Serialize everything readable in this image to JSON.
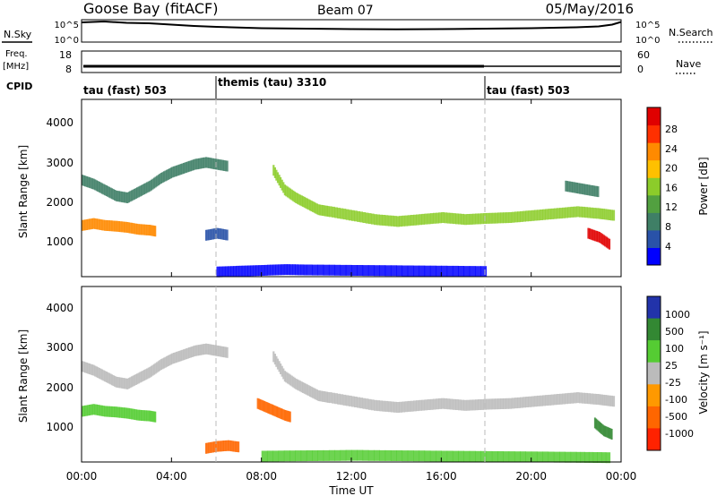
{
  "header": {
    "station": "Goose Bay (fitACF)",
    "beam": "Beam 07",
    "date": "05/May/2016"
  },
  "strips": {
    "nsky_label": "N.Sky",
    "nsky_ticks": [
      "10^5",
      "10^0"
    ],
    "nsearch_label": "N.Search",
    "nsearch_ticks": [
      "10^5",
      "10^0"
    ],
    "freq_label": "Freq.",
    "freq_unit": "[MHz]",
    "freq_ticks": [
      "18",
      "8"
    ],
    "nave_label": "Nave",
    "nave_ticks": [
      "60",
      "0"
    ],
    "cpid_label": "CPID",
    "cpid_segments": [
      {
        "label": "tau (fast) 503"
      },
      {
        "label": "themis (tau) 3310"
      },
      {
        "label": "tau (fast) 503"
      }
    ]
  },
  "colors": {
    "power": [
      "#0000ff",
      "#2952a8",
      "#3f7f66",
      "#52a040",
      "#8ccc2a",
      "#ffc000",
      "#ff8a00",
      "#ff3000",
      "#e00000"
    ],
    "velocity": [
      "#2233aa",
      "#338833",
      "#55cc33",
      "#bbbbbb",
      "#ff9900",
      "#ff6600",
      "#ff2200"
    ],
    "trace": "#000000"
  },
  "chart_data": [
    {
      "type": "heatmap",
      "name": "power",
      "ylabel": "Slant Range [km]",
      "yticks": [
        "4000",
        "3000",
        "2000",
        "1000"
      ],
      "ylim": [
        0,
        4500
      ],
      "xlim": [
        0,
        24
      ],
      "colorbar_label": "Power [dB]",
      "colorbar_ticks": [
        "28",
        "24",
        "20",
        "16",
        "12",
        "8",
        "4"
      ],
      "colorbar_range": [
        0,
        32
      ],
      "series": [
        {
          "x": [
            0,
            0.5,
            1,
            1.5,
            2,
            2.5,
            3,
            3.3
          ],
          "y": [
            1300,
            1350,
            1300,
            1280,
            1250,
            1200,
            1180,
            1150
          ],
          "level": 0.75
        },
        {
          "x": [
            0,
            0.5,
            1,
            1.5,
            2,
            2.5,
            3,
            3.5,
            4,
            4.5,
            5,
            5.5,
            6,
            6.5
          ],
          "y": [
            2450,
            2350,
            2200,
            2050,
            2000,
            2150,
            2300,
            2500,
            2650,
            2750,
            2850,
            2900,
            2850,
            2800
          ],
          "level": 0.3
        },
        {
          "x": [
            8.5,
            9,
            9.5,
            10,
            10.5,
            11,
            12,
            13,
            14,
            15,
            16,
            17,
            18,
            19,
            20,
            21,
            22,
            23,
            23.7
          ],
          "y": [
            2700,
            2200,
            2000,
            1850,
            1700,
            1650,
            1550,
            1450,
            1400,
            1450,
            1500,
            1450,
            1480,
            1500,
            1550,
            1600,
            1650,
            1600,
            1550
          ],
          "level": 0.45
        },
        {
          "x": [
            6,
            7,
            8,
            9,
            10,
            12,
            14,
            16,
            18
          ],
          "y": [
            120,
            140,
            160,
            180,
            170,
            160,
            150,
            140,
            130
          ],
          "level": 0.1
        },
        {
          "x": [
            5.5,
            6,
            6.5
          ],
          "y": [
            1050,
            1100,
            1050
          ],
          "level": 0.2
        },
        {
          "x": [
            21.5,
            22,
            22.5,
            23
          ],
          "y": [
            2300,
            2250,
            2200,
            2150
          ],
          "level": 0.3
        },
        {
          "x": [
            22.5,
            23,
            23.5
          ],
          "y": [
            1100,
            1000,
            800
          ],
          "level": 0.9
        }
      ]
    },
    {
      "type": "heatmap",
      "name": "velocity",
      "ylabel": "Slant Range [km]",
      "yticks": [
        "4000",
        "3000",
        "2000",
        "1000"
      ],
      "ylim": [
        0,
        4500
      ],
      "xlim": [
        0,
        24
      ],
      "xlabel": "Time UT",
      "xticks": [
        "00:00",
        "04:00",
        "08:00",
        "12:00",
        "16:00",
        "20:00",
        "00:00"
      ],
      "colorbar_label": "Velocity [m s⁻¹]",
      "colorbar_ticks": [
        "1000",
        "500",
        "100",
        "25",
        "-25",
        "-100",
        "-500",
        "-1000"
      ],
      "series": [
        {
          "x": [
            0,
            0.5,
            1,
            1.5,
            2,
            2.5,
            3,
            3.3
          ],
          "y": [
            1300,
            1350,
            1300,
            1280,
            1250,
            1200,
            1180,
            1150
          ],
          "velocity": 80
        },
        {
          "x": [
            0,
            0.5,
            1,
            1.5,
            2,
            2.5,
            3,
            3.5,
            4,
            4.5,
            5,
            5.5,
            6,
            6.5
          ],
          "y": [
            2450,
            2350,
            2200,
            2050,
            2000,
            2150,
            2300,
            2500,
            2650,
            2750,
            2850,
            2900,
            2850,
            2800
          ],
          "velocity": 0
        },
        {
          "x": [
            8.5,
            9,
            9.5,
            10,
            10.5,
            11,
            12,
            13,
            14,
            15,
            16,
            17,
            18,
            19,
            20,
            21,
            22,
            23,
            23.7
          ],
          "y": [
            2700,
            2200,
            2000,
            1850,
            1700,
            1650,
            1550,
            1450,
            1400,
            1450,
            1500,
            1450,
            1480,
            1500,
            1550,
            1600,
            1650,
            1600,
            1550
          ],
          "velocity": 0
        },
        {
          "x": [
            7.8,
            8.2,
            8.6,
            9,
            9.3
          ],
          "y": [
            1500,
            1400,
            1300,
            1200,
            1150
          ],
          "velocity": -300
        },
        {
          "x": [
            5.5,
            6,
            6.5,
            7
          ],
          "y": [
            350,
            400,
            420,
            380
          ],
          "velocity": -150
        },
        {
          "x": [
            8,
            10,
            12,
            14,
            16,
            18,
            20,
            22,
            23.5
          ],
          "y": [
            150,
            160,
            170,
            160,
            150,
            140,
            130,
            120,
            110
          ],
          "velocity": 90
        },
        {
          "x": [
            22.8,
            23.2,
            23.6
          ],
          "y": [
            1000,
            800,
            700
          ],
          "velocity": 120
        }
      ]
    }
  ],
  "nsky_trace": {
    "x": [
      0,
      1,
      2,
      3,
      4,
      5,
      6,
      8,
      10,
      12,
      14,
      16,
      18,
      20,
      22,
      23,
      23.6,
      24
    ],
    "level": [
      0.88,
      0.92,
      0.86,
      0.84,
      0.78,
      0.72,
      0.68,
      0.62,
      0.6,
      0.58,
      0.57,
      0.58,
      0.6,
      0.62,
      0.66,
      0.7,
      0.78,
      0.9
    ]
  }
}
